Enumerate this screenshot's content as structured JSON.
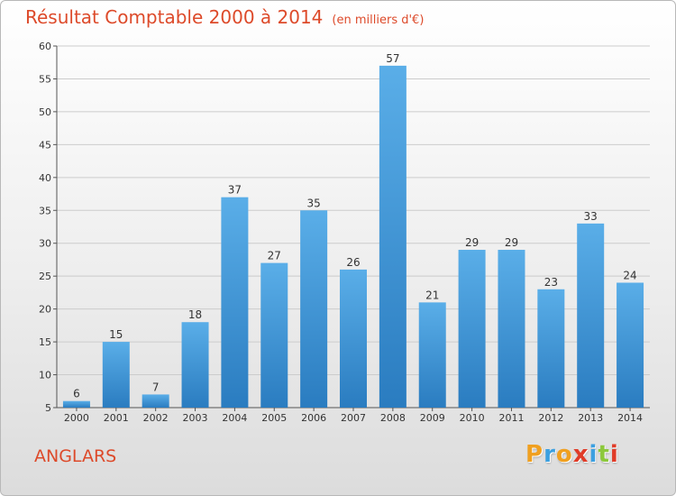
{
  "title": "Résultat Comptable 2000 à 2014",
  "unit_note": "(en milliers d'€)",
  "commune": "ANGLARS",
  "logo": {
    "letters": [
      "P",
      "r",
      "o",
      "x",
      "i",
      "t",
      "i"
    ],
    "colors": [
      "#f0a020",
      "#3ca0e0",
      "#f0a020",
      "#e03c28",
      "#3ca0e0",
      "#8cc83c",
      "#e03c28"
    ]
  },
  "colors": {
    "title": "#dd4a2a",
    "bar_top": "#5aaee8",
    "bar_bottom": "#2a7cc0",
    "grid": "#cccccc"
  },
  "chart_data": {
    "type": "bar",
    "categories": [
      "2000",
      "2001",
      "2002",
      "2003",
      "2004",
      "2005",
      "2006",
      "2007",
      "2008",
      "2009",
      "2010",
      "2011",
      "2012",
      "2013",
      "2014"
    ],
    "values": [
      6,
      15,
      7,
      18,
      37,
      27,
      35,
      26,
      57,
      21,
      29,
      29,
      23,
      33,
      24
    ],
    "ylim": [
      5,
      60
    ],
    "yticks": [
      5,
      10,
      15,
      20,
      25,
      30,
      35,
      40,
      45,
      50,
      55,
      60
    ],
    "grid": true,
    "data_labels": true
  }
}
